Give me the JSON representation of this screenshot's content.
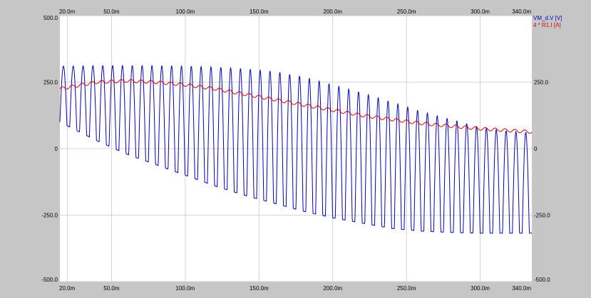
{
  "chart_data": {
    "type": "line",
    "x_unit_scale": "milli",
    "xlim": [
      15,
      335
    ],
    "ylim": [
      -500,
      500
    ],
    "y2lim": [
      -500,
      500
    ],
    "x_ticks": [
      "20.0m",
      "50.0m",
      "100.0m",
      "150.0m",
      "200.0m",
      "250.0m",
      "300.0m",
      "340.0m"
    ],
    "x_tick_values": [
      20,
      50,
      100,
      150,
      200,
      250,
      300,
      340
    ],
    "y_ticks_left": [
      "500.0",
      "250.0",
      "0",
      "-250.0",
      "-500.0"
    ],
    "y_ticks_right": [
      "250.0",
      "0",
      "-250.0",
      "-500.0"
    ],
    "y_tick_values_left": [
      500,
      250,
      0,
      -250,
      -500
    ],
    "y_tick_values_right": [
      250,
      0,
      -250,
      -500
    ],
    "grid": true,
    "legend_position": "top-right",
    "series": [
      {
        "name": "VM_d.V [V]",
        "color": "#0000cc",
        "kind": "oscillating",
        "period": 6.67,
        "x": [
          15,
          40,
          60,
          80,
          100,
          120,
          140,
          160,
          180,
          200,
          220,
          240,
          260,
          280,
          300,
          320,
          335
        ],
        "upper": [
          310,
          312,
          312,
          312,
          310,
          307,
          300,
          290,
          270,
          240,
          210,
          175,
          140,
          110,
          80,
          65,
          60
        ],
        "lower": [
          100,
          30,
          -20,
          -60,
          -100,
          -140,
          -175,
          -205,
          -235,
          -260,
          -280,
          -300,
          -310,
          -315,
          -318,
          -318,
          -318
        ]
      },
      {
        "name": "4 * R1.I [A]",
        "color": "#dd0000",
        "kind": "line",
        "ripple": 6,
        "x": [
          15,
          40,
          60,
          80,
          100,
          120,
          140,
          160,
          180,
          200,
          220,
          240,
          260,
          280,
          300,
          320,
          335
        ],
        "y": [
          225,
          250,
          255,
          250,
          240,
          225,
          205,
          185,
          165,
          145,
          125,
          110,
          95,
          85,
          75,
          68,
          63
        ]
      }
    ]
  }
}
